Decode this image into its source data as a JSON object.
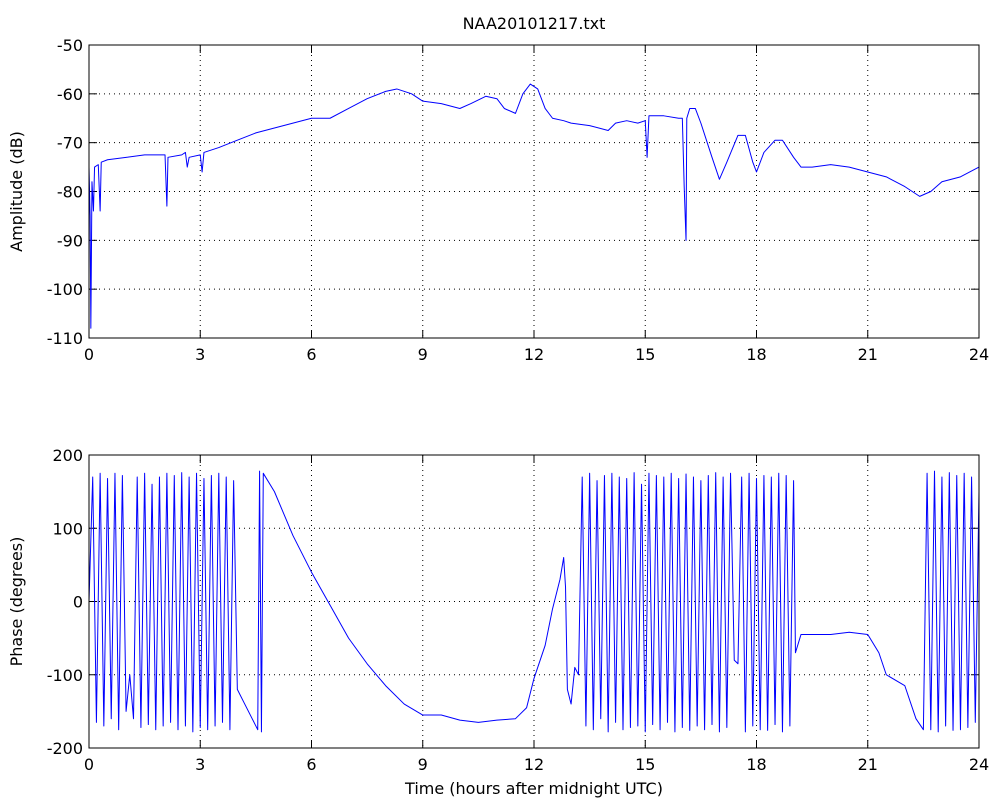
{
  "chart_data": [
    {
      "type": "line",
      "title": "NAA20101217.txt",
      "ylabel": "Amplitude (dB)",
      "color": "#0000ff",
      "grid": true,
      "xlim": [
        0,
        24
      ],
      "xticks": [
        0,
        3,
        6,
        9,
        12,
        15,
        18,
        21,
        24
      ],
      "ylim": [
        -110,
        -50
      ],
      "yticks": [
        -110,
        -100,
        -90,
        -80,
        -70,
        -60,
        -50
      ],
      "x": [
        0,
        0.03,
        0.05,
        0.08,
        0.12,
        0.15,
        0.25,
        0.3,
        0.33,
        0.5,
        1,
        1.5,
        2,
        2.05,
        2.1,
        2.13,
        2.5,
        2.6,
        2.65,
        2.7,
        3,
        3.05,
        3.1,
        3.5,
        4,
        4.5,
        5,
        5.5,
        6,
        6.5,
        7,
        7.5,
        8,
        8.3,
        8.7,
        9,
        9.5,
        10,
        10.3,
        10.7,
        11,
        11.2,
        11.5,
        11.7,
        11.9,
        12.1,
        12.3,
        12.5,
        12.8,
        13,
        13.5,
        14,
        14.2,
        14.5,
        14.8,
        15,
        15.05,
        15.1,
        15.5,
        15.9,
        16.0,
        16.05,
        16.1,
        16.12,
        16.2,
        16.35,
        16.5,
        16.8,
        17,
        17.2,
        17.5,
        17.7,
        17.9,
        18,
        18.2,
        18.5,
        18.7,
        19,
        19.2,
        19.5,
        20,
        20.5,
        21,
        21.5,
        22,
        22.4,
        22.7,
        23,
        23.5,
        24
      ],
      "values": [
        -75,
        -85,
        -108,
        -78,
        -84,
        -75,
        -74.5,
        -84,
        -74,
        -73.5,
        -73,
        -72.5,
        -72.5,
        -72.5,
        -83,
        -73,
        -72.5,
        -72,
        -75,
        -73,
        -72.5,
        -76,
        -72,
        -71,
        -69.5,
        -68,
        -67,
        -66,
        -65,
        -65,
        -63,
        -61,
        -59.5,
        -59,
        -60,
        -61.5,
        -62,
        -63,
        -62,
        -60.5,
        -61,
        -63,
        -64,
        -60,
        -58,
        -59,
        -63,
        -65,
        -65.5,
        -66,
        -66.5,
        -67.5,
        -66,
        -65.5,
        -66,
        -65.5,
        -73,
        -64.5,
        -64.5,
        -65,
        -65,
        -79,
        -90,
        -65,
        -63,
        -63,
        -66,
        -73,
        -77.5,
        -74,
        -68.5,
        -68.5,
        -74,
        -76,
        -72,
        -69.5,
        -69.5,
        -73,
        -75,
        -75,
        -74.5,
        -75,
        -76,
        -77,
        -79,
        -81,
        -80,
        -78,
        -77,
        -75
      ]
    },
    {
      "type": "line",
      "ylabel": "Phase (degrees)",
      "xlabel": "Time (hours after midnight UTC)",
      "color": "#0000ff",
      "grid": true,
      "xlim": [
        0,
        24
      ],
      "xticks": [
        0,
        3,
        6,
        9,
        12,
        15,
        18,
        21,
        24
      ],
      "ylim": [
        -200,
        200
      ],
      "yticks": [
        -200,
        -100,
        0,
        100,
        200
      ],
      "x": [
        0,
        0.1,
        0.2,
        0.3,
        0.4,
        0.5,
        0.6,
        0.7,
        0.8,
        0.9,
        1.0,
        1.1,
        1.2,
        1.3,
        1.4,
        1.5,
        1.6,
        1.7,
        1.8,
        1.9,
        2.0,
        2.1,
        2.2,
        2.3,
        2.4,
        2.5,
        2.6,
        2.7,
        2.8,
        2.9,
        3.0,
        3.1,
        3.2,
        3.3,
        3.4,
        3.5,
        3.6,
        3.7,
        3.8,
        3.9,
        4.0,
        4.2,
        4.4,
        4.55,
        4.6,
        4.65,
        4.7,
        5,
        5.5,
        6,
        6.5,
        7,
        7.5,
        8,
        8.5,
        9,
        9.5,
        10,
        10.5,
        11,
        11.5,
        11.8,
        12,
        12.3,
        12.5,
        12.7,
        12.8,
        12.85,
        12.9,
        13,
        13.1,
        13.2,
        13.3,
        13.4,
        13.5,
        13.6,
        13.7,
        13.8,
        13.9,
        14.0,
        14.1,
        14.2,
        14.3,
        14.4,
        14.5,
        14.6,
        14.7,
        14.8,
        14.9,
        15.0,
        15.1,
        15.2,
        15.3,
        15.4,
        15.5,
        15.6,
        15.7,
        15.8,
        15.9,
        16.0,
        16.1,
        16.2,
        16.3,
        16.4,
        16.5,
        16.6,
        16.7,
        16.8,
        16.9,
        17.0,
        17.1,
        17.2,
        17.3,
        17.4,
        17.5,
        17.6,
        17.7,
        17.8,
        17.9,
        18.0,
        18.1,
        18.2,
        18.3,
        18.4,
        18.5,
        18.6,
        18.7,
        18.8,
        18.9,
        19.0,
        19.05,
        19.2,
        20,
        20.5,
        21,
        21.3,
        21.5,
        22,
        22.3,
        22.5,
        22.6,
        22.7,
        22.8,
        22.9,
        23.0,
        23.1,
        23.2,
        23.3,
        23.4,
        23.5,
        23.6,
        23.7,
        23.8,
        23.9,
        24.0
      ],
      "values": [
        0,
        170,
        -165,
        175,
        -170,
        168,
        -160,
        175,
        -175,
        172,
        -150,
        -100,
        -160,
        170,
        -172,
        175,
        -168,
        160,
        -175,
        170,
        -170,
        175,
        -165,
        172,
        -175,
        176,
        -170,
        170,
        -178,
        175,
        -172,
        168,
        -175,
        172,
        -170,
        175,
        -165,
        170,
        -175,
        165,
        -120,
        -140,
        -160,
        -175,
        178,
        -178,
        175,
        150,
        90,
        40,
        -5,
        -50,
        -85,
        -115,
        -140,
        -155,
        -155,
        -162,
        -165,
        -162,
        -160,
        -145,
        -105,
        -60,
        -10,
        30,
        60,
        20,
        -120,
        -140,
        -90,
        -100,
        170,
        -170,
        175,
        -175,
        165,
        -160,
        172,
        -178,
        175,
        -165,
        170,
        -175,
        168,
        -172,
        176,
        -170,
        160,
        -178,
        175,
        -168,
        172,
        -175,
        170,
        -165,
        175,
        -178,
        168,
        -172,
        174,
        -176,
        170,
        -170,
        165,
        -175,
        172,
        -168,
        176,
        -178,
        170,
        -172,
        175,
        -80,
        -85,
        170,
        -178,
        175,
        -170,
        168,
        -175,
        172,
        -176,
        170,
        -168,
        175,
        -178,
        172,
        -170,
        165,
        -70,
        -45,
        -45,
        -42,
        -45,
        -70,
        -100,
        -115,
        -160,
        -175,
        175,
        -175,
        178,
        -178,
        170,
        -170,
        176,
        -176,
        172,
        -175,
        175,
        -172,
        170,
        -165,
        150
      ]
    }
  ]
}
